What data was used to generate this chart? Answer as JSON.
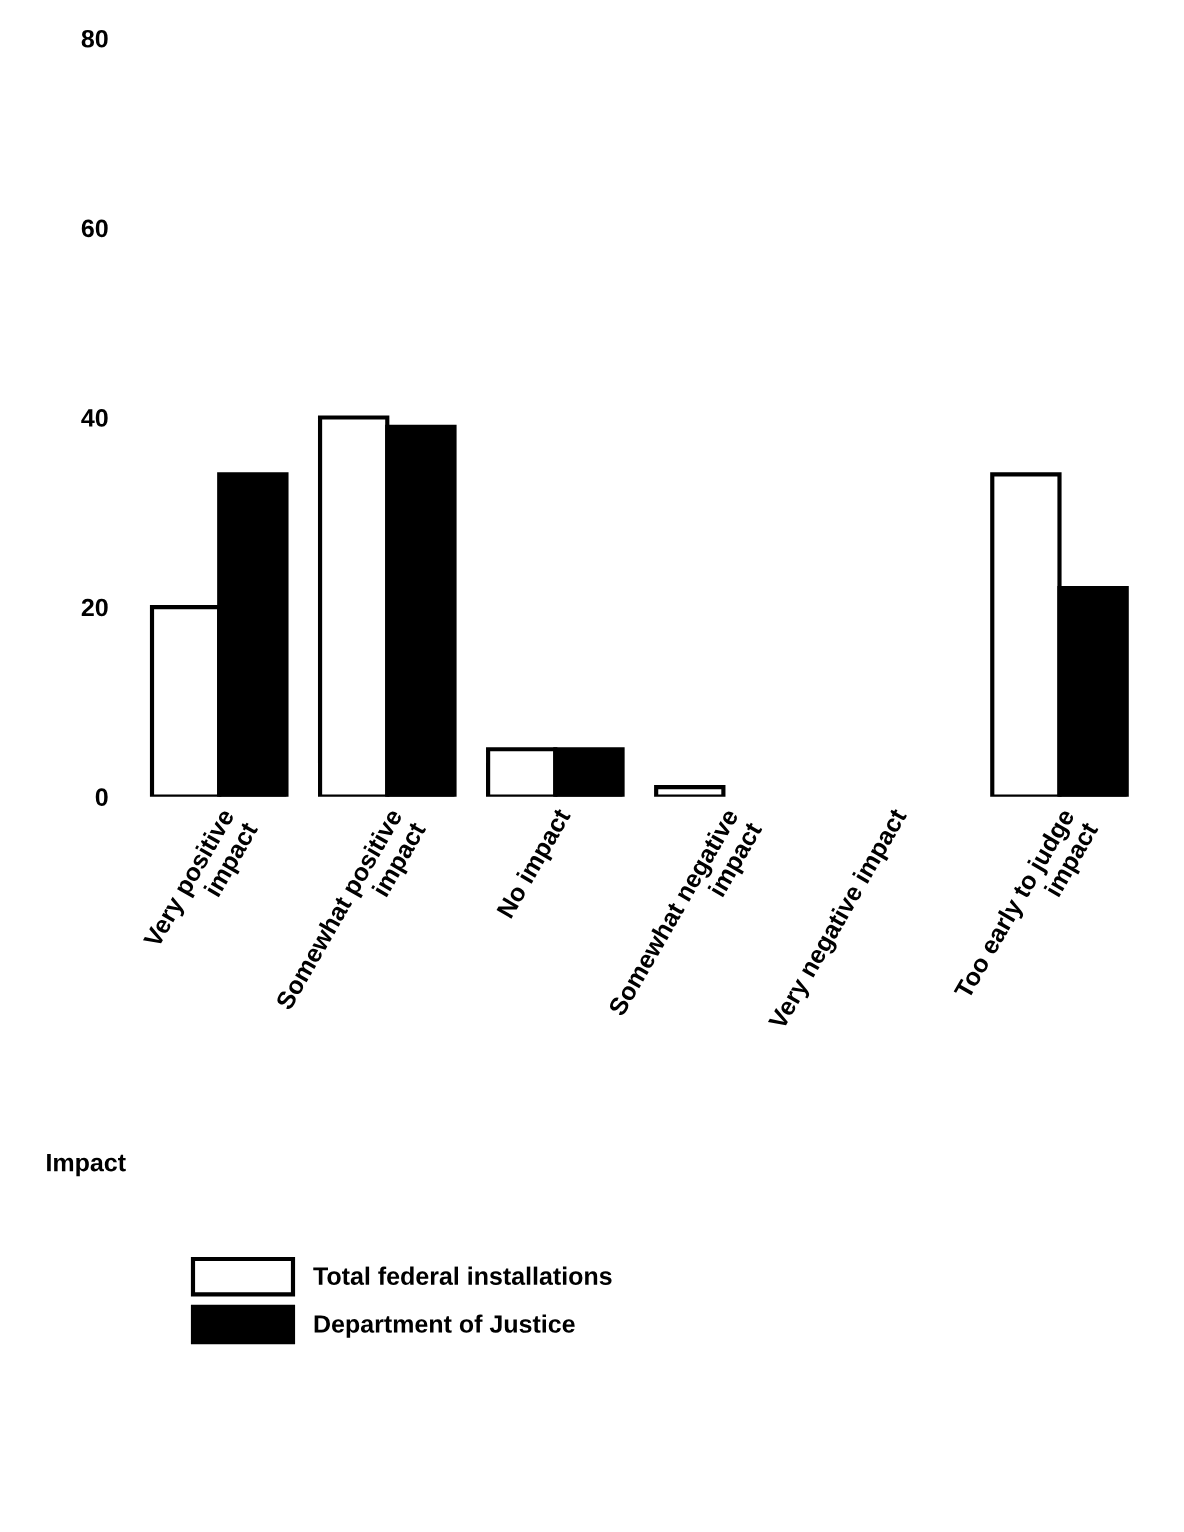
{
  "chart_data": {
    "type": "bar",
    "xlabel": "Impact",
    "categories": [
      "Very positive\nimpact",
      "Somewhat positive\nimpact",
      "No impact",
      "Somewhat negative\nimpact",
      "Very negative impact",
      "Too early to judge\nimpact"
    ],
    "series": [
      {
        "name": "Total federal installations",
        "color": "#ffffff",
        "values": [
          20,
          40,
          5,
          1,
          0,
          34
        ]
      },
      {
        "name": "Department of Justice",
        "color": "#000000",
        "values": [
          34,
          39,
          5,
          0,
          0,
          22
        ]
      }
    ],
    "ylim": [
      0,
      80
    ],
    "yticks": [
      0,
      20,
      40,
      60,
      80
    ],
    "grid": false,
    "legend": "bottom"
  }
}
